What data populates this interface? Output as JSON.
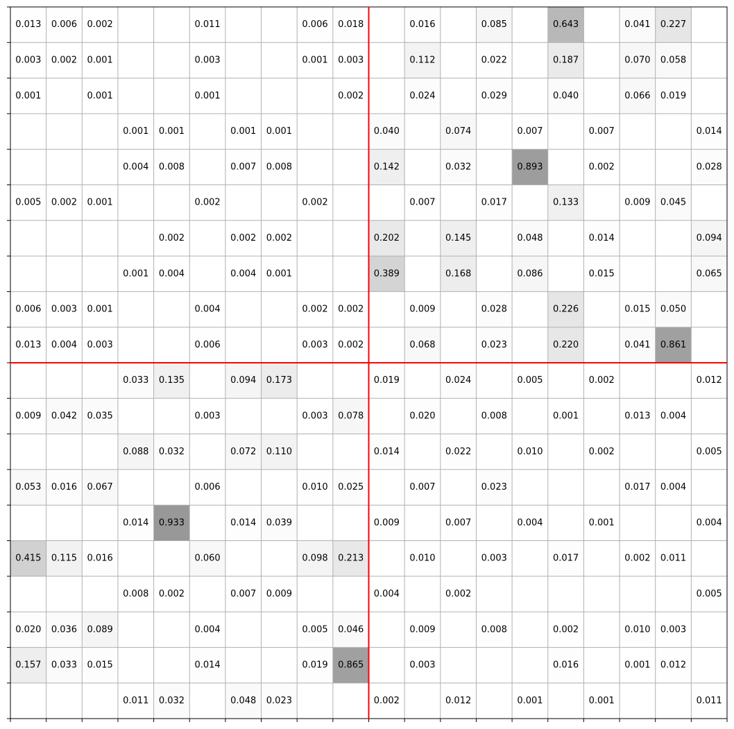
{
  "chart_data": {
    "type": "heatmap",
    "rows": 20,
    "cols": 20,
    "title": "",
    "xlabel": "",
    "ylabel": "",
    "grid": true,
    "divider_row": 10,
    "divider_col": 10,
    "divider_color": "#ff0000",
    "grid_color": "#b0b0b0",
    "max_value": 1.0,
    "values": [
      [
        "0.013",
        "0.006",
        "0.002",
        "",
        "",
        "0.011",
        "",
        "",
        "0.006",
        "0.018",
        "",
        "0.016",
        "",
        "0.085",
        "",
        "0.643",
        "",
        "0.041",
        "0.227",
        ""
      ],
      [
        "0.003",
        "0.002",
        "0.001",
        "",
        "",
        "0.003",
        "",
        "",
        "0.001",
        "0.003",
        "",
        "0.112",
        "",
        "0.022",
        "",
        "0.187",
        "",
        "0.070",
        "0.058",
        ""
      ],
      [
        "0.001",
        "",
        "0.001",
        "",
        "",
        "0.001",
        "",
        "",
        "",
        "0.002",
        "",
        "0.024",
        "",
        "0.029",
        "",
        "0.040",
        "",
        "0.066",
        "0.019",
        ""
      ],
      [
        "",
        "",
        "",
        "0.001",
        "0.001",
        "",
        "0.001",
        "0.001",
        "",
        "",
        "0.040",
        "",
        "0.074",
        "",
        "0.007",
        "",
        "0.007",
        "",
        "",
        "0.014"
      ],
      [
        "",
        "",
        "",
        "0.004",
        "0.008",
        "",
        "0.007",
        "0.008",
        "",
        "",
        "0.142",
        "",
        "0.032",
        "",
        "0.893",
        "",
        "0.002",
        "",
        "",
        "0.028"
      ],
      [
        "0.005",
        "0.002",
        "0.001",
        "",
        "",
        "0.002",
        "",
        "",
        "0.002",
        "",
        "",
        "0.007",
        "",
        "0.017",
        "",
        "0.133",
        "",
        "0.009",
        "0.045",
        ""
      ],
      [
        "",
        "",
        "",
        "",
        "0.002",
        "",
        "0.002",
        "0.002",
        "",
        "",
        "0.202",
        "",
        "0.145",
        "",
        "0.048",
        "",
        "0.014",
        "",
        "",
        "0.094"
      ],
      [
        "",
        "",
        "",
        "0.001",
        "0.004",
        "",
        "0.004",
        "0.001",
        "",
        "",
        "0.389",
        "",
        "0.168",
        "",
        "0.086",
        "",
        "0.015",
        "",
        "",
        "0.065"
      ],
      [
        "0.006",
        "0.003",
        "0.001",
        "",
        "",
        "0.004",
        "",
        "",
        "0.002",
        "0.002",
        "",
        "0.009",
        "",
        "0.028",
        "",
        "0.226",
        "",
        "0.015",
        "0.050",
        ""
      ],
      [
        "0.013",
        "0.004",
        "0.003",
        "",
        "",
        "0.006",
        "",
        "",
        "0.003",
        "0.002",
        "",
        "0.068",
        "",
        "0.023",
        "",
        "0.220",
        "",
        "0.041",
        "0.861",
        ""
      ],
      [
        "",
        "",
        "",
        "0.033",
        "0.135",
        "",
        "0.094",
        "0.173",
        "",
        "",
        "0.019",
        "",
        "0.024",
        "",
        "0.005",
        "",
        "0.002",
        "",
        "",
        "0.012"
      ],
      [
        "0.009",
        "0.042",
        "0.035",
        "",
        "",
        "0.003",
        "",
        "",
        "0.003",
        "0.078",
        "",
        "0.020",
        "",
        "0.008",
        "",
        "0.001",
        "",
        "0.013",
        "0.004",
        ""
      ],
      [
        "",
        "",
        "",
        "0.088",
        "0.032",
        "",
        "0.072",
        "0.110",
        "",
        "",
        "0.014",
        "",
        "0.022",
        "",
        "0.010",
        "",
        "0.002",
        "",
        "",
        "0.005"
      ],
      [
        "0.053",
        "0.016",
        "0.067",
        "",
        "",
        "0.006",
        "",
        "",
        "0.010",
        "0.025",
        "",
        "0.007",
        "",
        "0.023",
        "",
        "",
        "",
        "0.017",
        "0.004",
        ""
      ],
      [
        "",
        "",
        "",
        "0.014",
        "0.933",
        "",
        "0.014",
        "0.039",
        "",
        "",
        "0.009",
        "",
        "0.007",
        "",
        "0.004",
        "",
        "0.001",
        "",
        "",
        "0.004"
      ],
      [
        "0.415",
        "0.115",
        "0.016",
        "",
        "",
        "0.060",
        "",
        "",
        "0.098",
        "0.213",
        "",
        "0.010",
        "",
        "0.003",
        "",
        "0.017",
        "",
        "0.002",
        "0.011",
        ""
      ],
      [
        "",
        "",
        "",
        "0.008",
        "0.002",
        "",
        "0.007",
        "0.009",
        "",
        "",
        "0.004",
        "",
        "0.002",
        "",
        "",
        "",
        "",
        "",
        "",
        "0.005"
      ],
      [
        "0.020",
        "0.036",
        "0.089",
        "",
        "",
        "0.004",
        "",
        "",
        "0.005",
        "0.046",
        "",
        "0.009",
        "",
        "0.008",
        "",
        "0.002",
        "",
        "0.010",
        "0.003",
        ""
      ],
      [
        "0.157",
        "0.033",
        "0.015",
        "",
        "",
        "0.014",
        "",
        "",
        "0.019",
        "0.865",
        "",
        "0.003",
        "",
        "",
        "",
        "0.016",
        "",
        "0.001",
        "0.012",
        ""
      ],
      [
        "",
        "",
        "",
        "0.011",
        "0.032",
        "",
        "0.048",
        "0.023",
        "",
        "",
        "0.002",
        "",
        "0.012",
        "",
        "0.001",
        "",
        "0.001",
        "",
        "",
        "0.011"
      ]
    ]
  }
}
